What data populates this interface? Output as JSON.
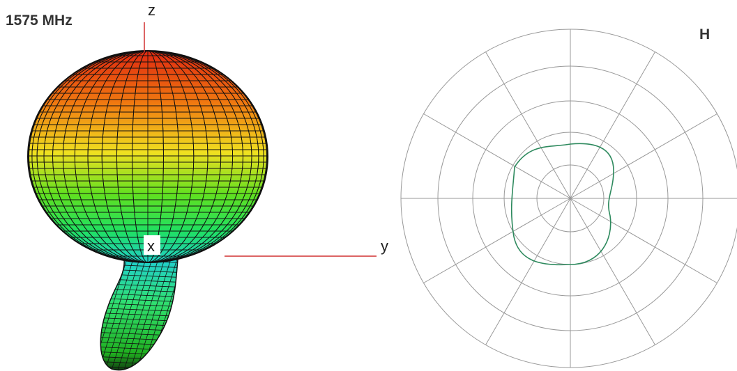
{
  "header": {
    "frequency": "1575 MHz",
    "plane": "H"
  },
  "axes3d": {
    "z": "z",
    "x": "x",
    "y": "y"
  }
}
